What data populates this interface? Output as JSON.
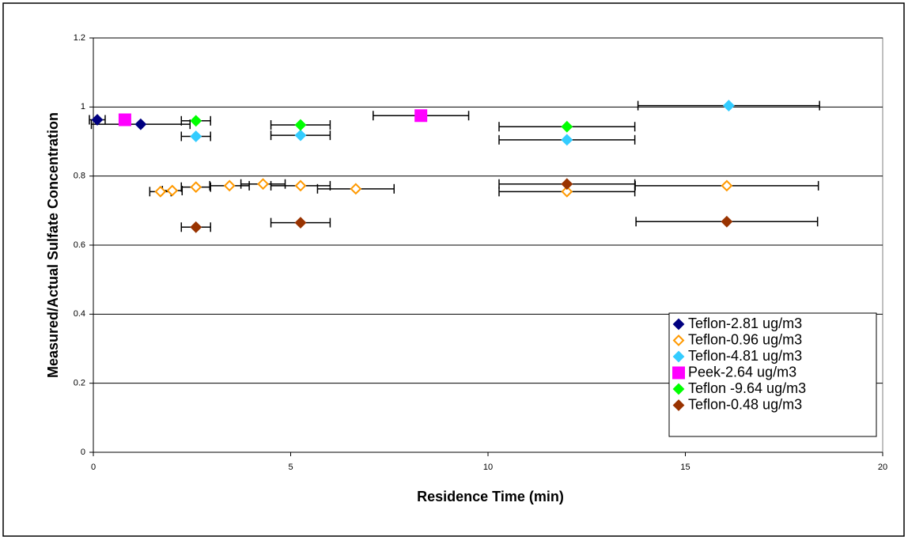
{
  "chart_data": {
    "type": "scatter",
    "x_label": "Residence Time (min)",
    "y_label": "Measured/Actual Sulfate Concentration",
    "xlim": [
      0,
      20
    ],
    "xticks": [
      0,
      5,
      10,
      15,
      20
    ],
    "ylim": [
      0,
      1.2
    ],
    "yticks": [
      0,
      0.2,
      0.4,
      0.6,
      0.8,
      1,
      1.2
    ],
    "grid": true,
    "legend": "lower right",
    "series": [
      {
        "name": "Teflon-2.81 ug/m3",
        "color": "#000080",
        "marker": "diamond",
        "filled": true,
        "x": [
          0.1,
          1.2
        ],
        "values": [
          0.963,
          0.95
        ],
        "x_errors": [
          0.2,
          1.25
        ]
      },
      {
        "name": "Teflon-0.96 ug/m3",
        "color": "#FF9900",
        "marker": "diamond",
        "filled": false,
        "x": [
          1.7,
          2.0,
          2.6,
          3.45,
          4.3,
          5.25,
          6.65,
          12,
          16.05
        ],
        "values": [
          0.755,
          0.758,
          0.768,
          0.772,
          0.777,
          0.772,
          0.763,
          0.755,
          0.772
        ],
        "x_errors": [
          0.27,
          0.25,
          0.37,
          0.5,
          0.56,
          0.75,
          0.97,
          1.72,
          2.32
        ]
      },
      {
        "name": "Teflon-4.81 ug/m3",
        "color": "#33CCFF",
        "marker": "diamond",
        "filled": true,
        "x": [
          2.6,
          5.25,
          12,
          16.1
        ],
        "values": [
          0.915,
          0.918,
          0.905,
          1.004
        ],
        "x_errors": [
          0.37,
          0.75,
          1.72,
          2.3
        ]
      },
      {
        "name": "Peek-2.64 ug/m3",
        "color": "#FF00FF",
        "marker": "square",
        "filled": true,
        "x": [
          0.8,
          8.3
        ],
        "values": [
          0.963,
          0.975
        ],
        "x_errors": [
          0.1,
          1.21
        ]
      },
      {
        "name": "Teflon -9.64 ug/m3",
        "color": "#00FF00",
        "marker": "diamond",
        "filled": true,
        "x": [
          2.6,
          5.25,
          12
        ],
        "values": [
          0.96,
          0.948,
          0.943
        ],
        "x_errors": [
          0.37,
          0.75,
          1.72
        ]
      },
      {
        "name": "Teflon-0.48 ug/m3",
        "color": "#993300",
        "marker": "diamond",
        "filled": true,
        "x": [
          2.6,
          5.25,
          12,
          16.05
        ],
        "values": [
          0.652,
          0.665,
          0.777,
          0.668
        ],
        "x_errors": [
          0.37,
          0.75,
          1.72,
          2.3
        ]
      }
    ]
  }
}
